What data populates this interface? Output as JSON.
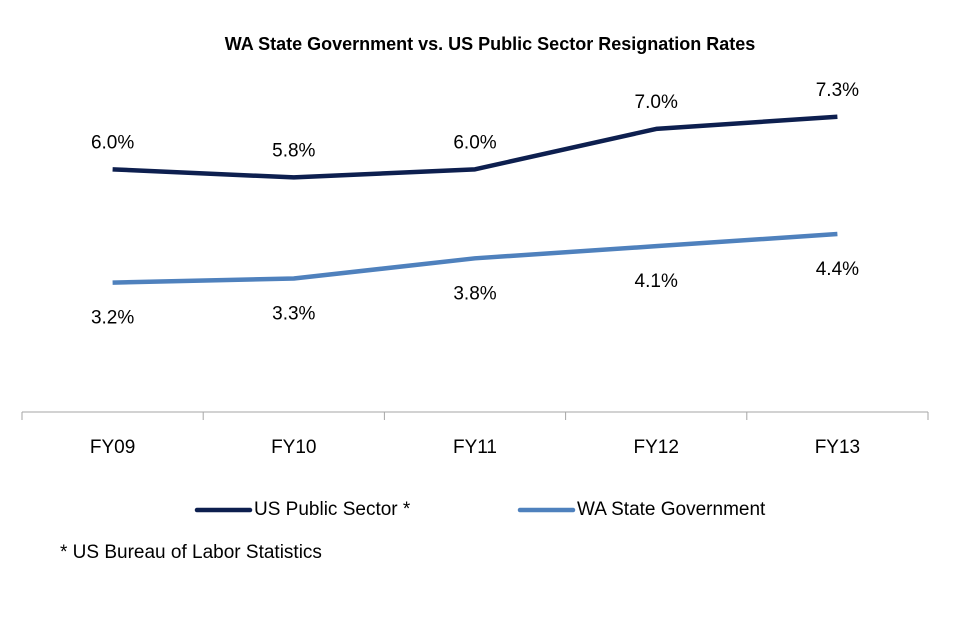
{
  "chart_data": {
    "type": "line",
    "title": "WA State Government vs. US Public Sector Resignation Rates",
    "categories": [
      "FY09",
      "FY10",
      "FY11",
      "FY12",
      "FY13"
    ],
    "series": [
      {
        "name": "US Public Sector *",
        "color": "#0d1f4f",
        "values": [
          6.0,
          5.8,
          6.0,
          7.0,
          7.3
        ],
        "value_labels": [
          "6.0%",
          "5.8%",
          "6.0%",
          "7.0%",
          "7.3%"
        ]
      },
      {
        "name": "WA State Government",
        "color": "#4f81bd",
        "values": [
          3.2,
          3.3,
          3.8,
          4.1,
          4.4
        ],
        "value_labels": [
          "3.2%",
          "3.3%",
          "3.8%",
          "4.1%",
          "4.4%"
        ]
      }
    ],
    "ylim": [
      0,
      9
    ],
    "footnote": "* US Bureau of Labor Statistics"
  }
}
